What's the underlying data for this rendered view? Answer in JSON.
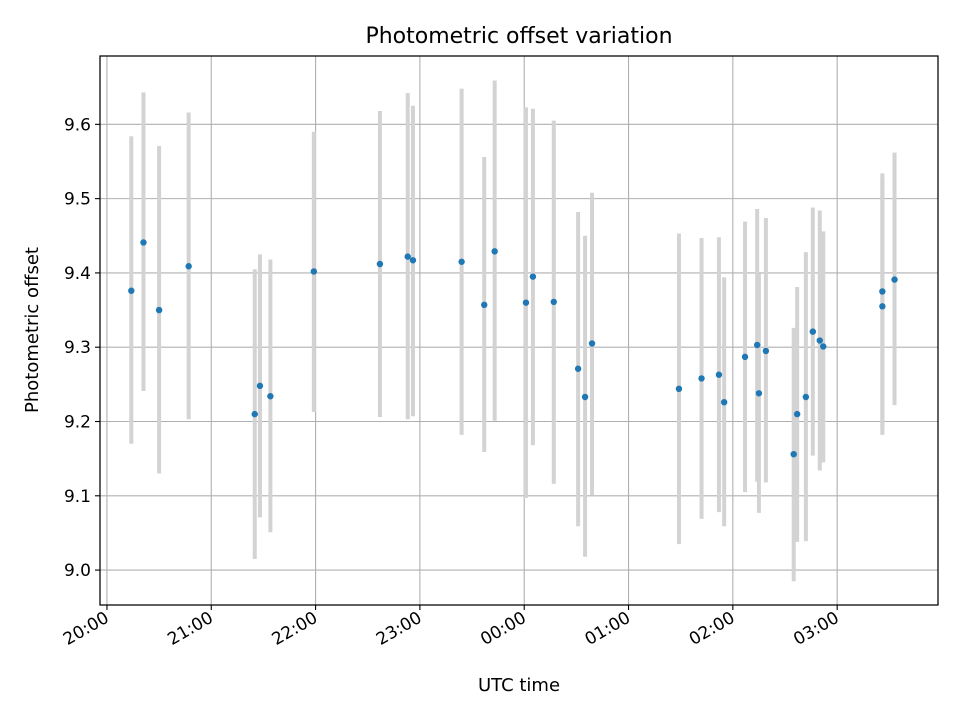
{
  "chart_data": {
    "type": "scatter",
    "title": "Photometric offset variation",
    "xlabel": "UTC time",
    "ylabel": "Photometric offset",
    "x_ticks": [
      "20:00",
      "21:00",
      "22:00",
      "23:00",
      "00:00",
      "01:00",
      "02:00",
      "03:00"
    ],
    "y_ticks": [
      "9.0",
      "9.1",
      "9.2",
      "9.3",
      "9.4",
      "9.5",
      "9.6"
    ],
    "xlim": [
      "19:56",
      "03:58"
    ],
    "ylim": [
      8.953,
      9.692
    ],
    "grid": true,
    "colors": {
      "point": "#1f77b4",
      "errorbar": "#d3d3d3",
      "grid": "#b0b0b0"
    },
    "points": [
      {
        "t": "20:14",
        "y": 9.376,
        "low": 9.17,
        "high": 9.584
      },
      {
        "t": "20:21",
        "y": 9.441,
        "low": 9.241,
        "high": 9.643
      },
      {
        "t": "20:30",
        "y": 9.35,
        "low": 9.13,
        "high": 9.571
      },
      {
        "t": "20:47",
        "y": 9.409,
        "low": 9.203,
        "high": 9.616
      },
      {
        "t": "21:25",
        "y": 9.21,
        "low": 9.015,
        "high": 9.405
      },
      {
        "t": "21:28",
        "y": 9.248,
        "low": 9.071,
        "high": 9.425
      },
      {
        "t": "21:34",
        "y": 9.234,
        "low": 9.051,
        "high": 9.418
      },
      {
        "t": "21:59",
        "y": 9.402,
        "low": 9.213,
        "high": 9.59
      },
      {
        "t": "22:37",
        "y": 9.412,
        "low": 9.206,
        "high": 9.618
      },
      {
        "t": "22:53",
        "y": 9.422,
        "low": 9.203,
        "high": 9.642
      },
      {
        "t": "22:56",
        "y": 9.417,
        "low": 9.207,
        "high": 9.625
      },
      {
        "t": "23:24",
        "y": 9.415,
        "low": 9.182,
        "high": 9.648
      },
      {
        "t": "23:37",
        "y": 9.357,
        "low": 9.159,
        "high": 9.556
      },
      {
        "t": "23:43",
        "y": 9.429,
        "low": 9.201,
        "high": 9.659
      },
      {
        "t": "00:01",
        "y": 9.36,
        "low": 9.097,
        "high": 9.623
      },
      {
        "t": "00:05",
        "y": 9.395,
        "low": 9.168,
        "high": 9.621
      },
      {
        "t": "00:17",
        "y": 9.361,
        "low": 9.116,
        "high": 9.605
      },
      {
        "t": "00:31",
        "y": 9.271,
        "low": 9.059,
        "high": 9.482
      },
      {
        "t": "00:35",
        "y": 9.233,
        "low": 9.018,
        "high": 9.45
      },
      {
        "t": "00:39",
        "y": 9.305,
        "low": 9.101,
        "high": 9.508
      },
      {
        "t": "01:29",
        "y": 9.244,
        "low": 9.035,
        "high": 9.453
      },
      {
        "t": "01:42",
        "y": 9.258,
        "low": 9.069,
        "high": 9.447
      },
      {
        "t": "01:52",
        "y": 9.263,
        "low": 9.078,
        "high": 9.448
      },
      {
        "t": "01:55",
        "y": 9.226,
        "low": 9.059,
        "high": 9.394
      },
      {
        "t": "02:07",
        "y": 9.287,
        "low": 9.105,
        "high": 9.469
      },
      {
        "t": "02:14",
        "y": 9.303,
        "low": 9.119,
        "high": 9.486
      },
      {
        "t": "02:15",
        "y": 9.238,
        "low": 9.077,
        "high": 9.399
      },
      {
        "t": "02:19",
        "y": 9.295,
        "low": 9.118,
        "high": 9.474
      },
      {
        "t": "02:35",
        "y": 9.156,
        "low": 8.985,
        "high": 9.326
      },
      {
        "t": "02:37",
        "y": 9.21,
        "low": 9.038,
        "high": 9.381
      },
      {
        "t": "02:42",
        "y": 9.233,
        "low": 9.039,
        "high": 9.428
      },
      {
        "t": "02:46",
        "y": 9.321,
        "low": 9.154,
        "high": 9.488
      },
      {
        "t": "02:50",
        "y": 9.309,
        "low": 9.134,
        "high": 9.484
      },
      {
        "t": "02:52",
        "y": 9.301,
        "low": 9.145,
        "high": 9.456
      },
      {
        "t": "03:26",
        "y": 9.375,
        "low": 9.182,
        "high": 9.534
      },
      {
        "t": "03:26",
        "y": 9.355,
        "low": 9.19,
        "high": 9.528
      },
      {
        "t": "03:33",
        "y": 9.391,
        "low": 9.222,
        "high": 9.562
      }
    ]
  }
}
